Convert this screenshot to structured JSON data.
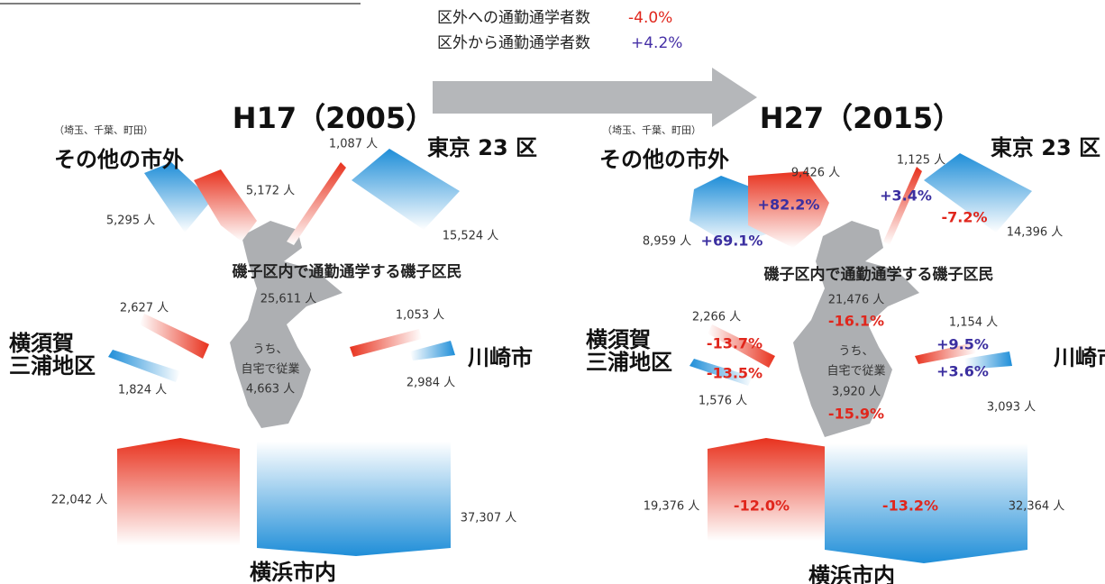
{
  "legend": {
    "outflow": {
      "label": "区外への通勤通学者数",
      "change": "-4.0%"
    },
    "inflow": {
      "label": "区外から通勤通学者数",
      "change": "+4.2%"
    }
  },
  "panels": [
    {
      "year": "H17（2005）",
      "other_note": "（埼玉、千葉、町田）",
      "other": "その他の市外",
      "tokyo": "東京 23 区",
      "yokosuka": "横須賀",
      "miura": "三浦地区",
      "kawasaki": "川崎市",
      "yokohama": "横浜市内",
      "internal": "磯子区内で通勤通学する磯子区民",
      "home_1": "うち、",
      "home_2": "自宅で従業",
      "flows": {
        "other_in": {
          "count": "5,295 人"
        },
        "other_out": {
          "count": "5,172 人"
        },
        "tokyo_out": {
          "count": "1,087 人"
        },
        "tokyo_in": {
          "count": "15,524 人"
        },
        "internal": {
          "count": "25,611 人"
        },
        "yokosuka_out": {
          "count": "2,627 人"
        },
        "yokosuka_in": {
          "count": "1,824 人"
        },
        "kawasaki_out": {
          "count": "1,053 人"
        },
        "kawasaki_in": {
          "count": "2,984 人"
        },
        "home": {
          "count": "4,663 人"
        },
        "yokohama_out": {
          "count": "22,042 人"
        },
        "yokohama_in": {
          "count": "37,307 人"
        }
      }
    },
    {
      "year": "H27（2015）",
      "other_note": "（埼玉、千葉、町田）",
      "other": "その他の市外",
      "tokyo": "東京 23 区",
      "yokosuka": "横須賀",
      "miura": "三浦地区",
      "kawasaki": "川崎市",
      "yokohama": "横浜市内",
      "internal": "磯子区内で通勤通学する磯子区民",
      "home_1": "うち、",
      "home_2": "自宅で従業",
      "flows": {
        "other_in": {
          "count": "8,959 人",
          "change": "+69.1%"
        },
        "other_out": {
          "count": "9,426 人",
          "change": "+82.2%"
        },
        "tokyo_out": {
          "count": "1,125 人",
          "change": "+3.4%"
        },
        "tokyo_in": {
          "count": "14,396 人",
          "change": "-7.2%"
        },
        "internal": {
          "count": "21,476 人",
          "change": "-16.1%"
        },
        "yokosuka_out": {
          "count": "2,266 人",
          "change": "-13.7%"
        },
        "yokosuka_in": {
          "count": "1,576 人",
          "change": "-13.5%"
        },
        "kawasaki_out": {
          "count": "1,154 人",
          "change": "+9.5%"
        },
        "kawasaki_in": {
          "count": "3,093 人",
          "change": "+3.6%"
        },
        "home": {
          "count": "3,920 人",
          "change": "-15.9%"
        },
        "yokohama_out": {
          "count": "19,376 人",
          "change": "-12.0%"
        },
        "yokohama_in": {
          "count": "32,364 人",
          "change": "-13.2%"
        }
      }
    }
  ]
}
